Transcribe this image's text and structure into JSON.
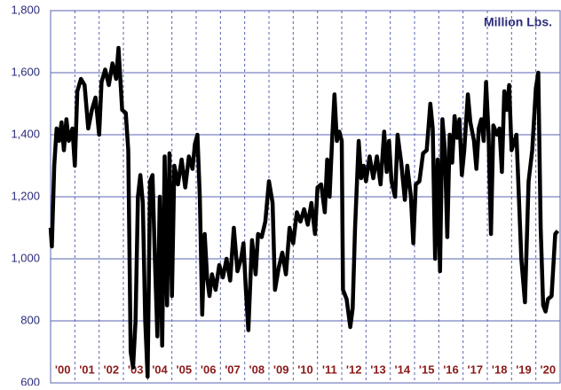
{
  "chart_data": {
    "type": "line",
    "annotation": "Million Lbs.",
    "xlim": [
      2000,
      2021
    ],
    "ylim": [
      600,
      1800
    ],
    "yticks": [
      600,
      800,
      {
        "value": 1000,
        "label": "1,000"
      },
      {
        "value": 1200,
        "label": "1,200"
      },
      {
        "value": 1400,
        "label": "1,400"
      },
      {
        "value": 1600,
        "label": "1,600"
      },
      {
        "value": 1800,
        "label": "1,800"
      }
    ],
    "xticks": [
      {
        "value": 2000.5,
        "label": "'00"
      },
      {
        "value": 2001.5,
        "label": "'01"
      },
      {
        "value": 2002.5,
        "label": "'02"
      },
      {
        "value": 2003.5,
        "label": "'03"
      },
      {
        "value": 2004.5,
        "label": "'04"
      },
      {
        "value": 2005.5,
        "label": "'05"
      },
      {
        "value": 2006.5,
        "label": "'06"
      },
      {
        "value": 2007.5,
        "label": "'07"
      },
      {
        "value": 2008.5,
        "label": "'08"
      },
      {
        "value": 2009.5,
        "label": "'09"
      },
      {
        "value": 2010.5,
        "label": "'10"
      },
      {
        "value": 2011.5,
        "label": "'11"
      },
      {
        "value": 2012.5,
        "label": "'12"
      },
      {
        "value": 2013.5,
        "label": "'13"
      },
      {
        "value": 2014.5,
        "label": "'14"
      },
      {
        "value": 2015.5,
        "label": "'15"
      },
      {
        "value": 2016.5,
        "label": "'16"
      },
      {
        "value": 2017.5,
        "label": "'17"
      },
      {
        "value": 2018.5,
        "label": "'18"
      },
      {
        "value": 2019.5,
        "label": "'19"
      },
      {
        "value": 2020.5,
        "label": "'20"
      }
    ],
    "xgrid": [
      2001,
      2002,
      2003,
      2004,
      2005,
      2006,
      2007,
      2008,
      2009,
      2010,
      2011,
      2012,
      2013,
      2014,
      2015,
      2016,
      2017,
      2018,
      2019,
      2020
    ],
    "grid": true,
    "color": "#000000",
    "x": [
      2000.0,
      2000.05,
      2000.15,
      2000.25,
      2000.35,
      2000.45,
      2000.55,
      2000.65,
      2000.75,
      2000.9,
      2001.0,
      2001.1,
      2001.25,
      2001.4,
      2001.55,
      2001.7,
      2001.85,
      2002.0,
      2002.1,
      2002.25,
      2002.4,
      2002.55,
      2002.7,
      2002.8,
      2002.95,
      2003.1,
      2003.2,
      2003.3,
      2003.4,
      2003.5,
      2003.6,
      2003.7,
      2003.8,
      2003.9,
      2004.0,
      2004.1,
      2004.2,
      2004.3,
      2004.4,
      2004.5,
      2004.6,
      2004.7,
      2004.8,
      2004.9,
      2005.0,
      2005.1,
      2005.25,
      2005.4,
      2005.55,
      2005.7,
      2005.85,
      2005.95,
      2006.05,
      2006.15,
      2006.25,
      2006.35,
      2006.45,
      2006.55,
      2006.65,
      2006.8,
      2006.95,
      2007.1,
      2007.25,
      2007.4,
      2007.55,
      2007.7,
      2007.85,
      2007.95,
      2008.05,
      2008.15,
      2008.3,
      2008.45,
      2008.55,
      2008.7,
      2008.85,
      2009.0,
      2009.15,
      2009.25,
      2009.4,
      2009.55,
      2009.7,
      2009.85,
      2010.0,
      2010.15,
      2010.3,
      2010.45,
      2010.6,
      2010.75,
      2010.9,
      2011.0,
      2011.15,
      2011.3,
      2011.4,
      2011.5,
      2011.6,
      2011.7,
      2011.8,
      2011.9,
      2012.0,
      2012.05,
      2012.2,
      2012.35,
      2012.45,
      2012.55,
      2012.7,
      2012.8,
      2012.9,
      2013.0,
      2013.15,
      2013.3,
      2013.45,
      2013.6,
      2013.75,
      2013.85,
      2013.95,
      2014.05,
      2014.2,
      2014.3,
      2014.45,
      2014.6,
      2014.7,
      2014.85,
      2014.95,
      2015.05,
      2015.2,
      2015.35,
      2015.5,
      2015.65,
      2015.75,
      2015.85,
      2015.95,
      2016.05,
      2016.15,
      2016.25,
      2016.35,
      2016.45,
      2016.55,
      2016.65,
      2016.75,
      2016.85,
      2016.95,
      2017.05,
      2017.2,
      2017.3,
      2017.45,
      2017.55,
      2017.65,
      2017.75,
      2017.85,
      2017.95,
      2018.05,
      2018.15,
      2018.25,
      2018.4,
      2018.5,
      2018.6,
      2018.7,
      2018.8,
      2018.9,
      2019.0,
      2019.2,
      2019.4,
      2019.55,
      2019.7,
      2019.85,
      2020.0,
      2020.1,
      2020.2,
      2020.3,
      2020.4,
      2020.5,
      2020.65,
      2020.8,
      2020.9
    ],
    "values": [
      1100,
      1040,
      1300,
      1420,
      1380,
      1440,
      1350,
      1450,
      1380,
      1420,
      1300,
      1540,
      1580,
      1560,
      1420,
      1480,
      1520,
      1400,
      1570,
      1610,
      1560,
      1630,
      1580,
      1680,
      1480,
      1470,
      1350,
      700,
      650,
      800,
      1200,
      1270,
      1180,
      800,
      620,
      1250,
      1270,
      1000,
      750,
      1200,
      720,
      1330,
      850,
      1340,
      880,
      1300,
      1240,
      1320,
      1230,
      1330,
      1290,
      1370,
      1400,
      1200,
      820,
      1080,
      940,
      880,
      950,
      900,
      980,
      940,
      1000,
      930,
      1100,
      960,
      1000,
      1050,
      900,
      770,
      1060,
      950,
      1080,
      1070,
      1120,
      1250,
      1180,
      900,
      970,
      1020,
      950,
      1100,
      1050,
      1150,
      1120,
      1160,
      1110,
      1180,
      1080,
      1230,
      1240,
      1150,
      1320,
      1200,
      1380,
      1530,
      1380,
      1410,
      1380,
      900,
      870,
      780,
      840,
      1100,
      1380,
      1260,
      1300,
      1250,
      1330,
      1260,
      1330,
      1240,
      1410,
      1280,
      1380,
      1250,
      1200,
      1400,
      1310,
      1190,
      1300,
      1200,
      1050,
      1240,
      1250,
      1340,
      1350,
      1500,
      1420,
      1000,
      1320,
      960,
      1450,
      1350,
      1070,
      1400,
      1310,
      1460,
      1390,
      1450,
      1270,
      1350,
      1530,
      1440,
      1380,
      1290,
      1420,
      1450,
      1380,
      1570,
      1400,
      1080,
      1430,
      1400,
      1420,
      1280,
      1540,
      1480,
      1560,
      1350,
      1400,
      1000,
      860,
      1250,
      1350,
      1550,
      1600,
      1100,
      850,
      830,
      870,
      880,
      1080,
      1090
    ]
  }
}
